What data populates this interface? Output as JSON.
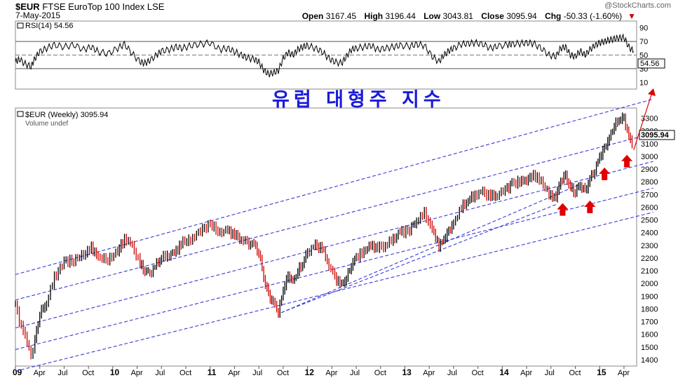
{
  "header": {
    "symbol": "$EUR",
    "name": "FTSE EuroTop 100 Index  LSE",
    "date": "7-May-2015",
    "brand": "@StockCharts.com",
    "open_label": "Open",
    "open": "3167.45",
    "high_label": "High",
    "high": "3196.44",
    "low_label": "Low",
    "low": "3043.81",
    "close_label": "Close",
    "close": "3095.94",
    "chg_label": "Chg",
    "chg": "-50.33 (-1.60%)",
    "chg_arrow": "▼"
  },
  "overlay_text": "유럽 대형주 지수",
  "rsi": {
    "label": "RSI(14) 54.56",
    "last": "54.56",
    "ticks": [
      "90",
      "70",
      "50",
      "30",
      "10"
    ],
    "levels": [
      90,
      70,
      50,
      30,
      10
    ],
    "ref_lines": [
      70,
      30
    ],
    "ylim": [
      0,
      100
    ]
  },
  "price_legend": "$EUR (Weekly) 3095.94",
  "volume_legend": "Volume undef",
  "price_box": "3095.94",
  "colors": {
    "up": "#000000",
    "down": "#cc0000",
    "channel": "#3a3ae0",
    "arrow": "#e00000"
  },
  "chart_data": {
    "type": "line",
    "title": "$EUR (Weekly) 3095.94",
    "x_labels": [
      "09",
      "Apr",
      "Jul",
      "Oct",
      "10",
      "Apr",
      "Jul",
      "Oct",
      "11",
      "Apr",
      "Jul",
      "Oct",
      "12",
      "Apr",
      "Jul",
      "Oct",
      "13",
      "Apr",
      "Jul",
      "Oct",
      "14",
      "Apr",
      "Jul",
      "Oct",
      "15",
      "Apr"
    ],
    "x_range": [
      2009.0,
      2015.38
    ],
    "ylim": [
      1350,
      3380
    ],
    "y_ticks": [
      1400,
      1500,
      1600,
      1700,
      1800,
      1900,
      2000,
      2100,
      2200,
      2300,
      2400,
      2500,
      2600,
      2700,
      2800,
      2900,
      3000,
      3100,
      3200,
      3300
    ],
    "series": [
      {
        "values_t": [
          2009.0,
          2009.04,
          2009.1,
          2009.16,
          2009.2,
          2009.25,
          2009.32,
          2009.4,
          2009.5,
          2009.6,
          2009.7,
          2009.78,
          2009.85,
          2009.95,
          2010.05,
          2010.12,
          2010.2,
          2010.28,
          2010.33,
          2010.38,
          2010.45,
          2010.5,
          2010.58,
          2010.65,
          2010.72,
          2010.8,
          2010.9,
          2011.0,
          2011.1,
          2011.18,
          2011.25,
          2011.32,
          2011.38,
          2011.45,
          2011.5,
          2011.55,
          2011.6,
          2011.65,
          2011.7,
          2011.75,
          2011.8,
          2011.85,
          2011.9,
          2011.95,
          2012.0,
          2012.08,
          2012.15,
          2012.22,
          2012.28,
          2012.35,
          2012.4,
          2012.45,
          2012.5,
          2012.58,
          2012.65,
          2012.72,
          2012.8,
          2012.88,
          2012.95,
          2013.05,
          2013.12,
          2013.2,
          2013.28,
          2013.35,
          2013.4,
          2013.45,
          2013.5,
          2013.58,
          2013.65,
          2013.72,
          2013.8,
          2013.88,
          2013.95,
          2014.05,
          2014.1,
          2014.18,
          2014.25,
          2014.32,
          2014.4,
          2014.48,
          2014.55,
          2014.6,
          2014.65,
          2014.7,
          2014.75,
          2014.8,
          2014.85,
          2014.9,
          2014.95,
          2015.0,
          2015.05,
          2015.1,
          2015.15,
          2015.2,
          2015.25,
          2015.3,
          2015.35
        ],
        "values": [
          1850,
          1700,
          1590,
          1420,
          1560,
          1760,
          1850,
          2050,
          2170,
          2180,
          2230,
          2280,
          2200,
          2190,
          2250,
          2350,
          2300,
          2150,
          2100,
          2080,
          2150,
          2200,
          2230,
          2260,
          2320,
          2340,
          2420,
          2460,
          2400,
          2420,
          2380,
          2350,
          2320,
          2300,
          2250,
          2050,
          1900,
          1850,
          1780,
          1950,
          2050,
          2020,
          2100,
          2150,
          2250,
          2300,
          2270,
          2150,
          2050,
          1980,
          2050,
          2150,
          2200,
          2250,
          2300,
          2280,
          2300,
          2350,
          2400,
          2420,
          2500,
          2550,
          2420,
          2300,
          2350,
          2400,
          2480,
          2600,
          2650,
          2700,
          2720,
          2680,
          2700,
          2750,
          2780,
          2800,
          2820,
          2850,
          2800,
          2700,
          2680,
          2800,
          2850,
          2750,
          2720,
          2780,
          2720,
          2820,
          2900,
          3000,
          3050,
          3150,
          3250,
          3280,
          3300,
          3150,
          3096
        ]
      }
    ],
    "rsi_values": [
      40,
      44,
      37,
      33,
      45,
      55,
      60,
      65,
      62,
      65,
      58,
      62,
      55,
      52,
      60,
      66,
      52,
      40,
      38,
      42,
      50,
      56,
      58,
      62,
      60,
      64,
      66,
      68,
      58,
      60,
      55,
      50,
      46,
      44,
      40,
      28,
      22,
      24,
      27,
      45,
      54,
      50,
      58,
      62,
      64,
      60,
      55,
      45,
      40,
      38,
      48,
      58,
      60,
      62,
      64,
      58,
      60,
      62,
      64,
      63,
      66,
      64,
      48,
      40,
      50,
      56,
      60,
      66,
      67,
      68,
      66,
      60,
      63,
      65,
      66,
      67,
      68,
      67,
      60,
      50,
      48,
      60,
      62,
      50,
      48,
      56,
      50,
      58,
      64,
      68,
      70,
      72,
      74,
      75,
      76,
      62,
      55
    ]
  }
}
